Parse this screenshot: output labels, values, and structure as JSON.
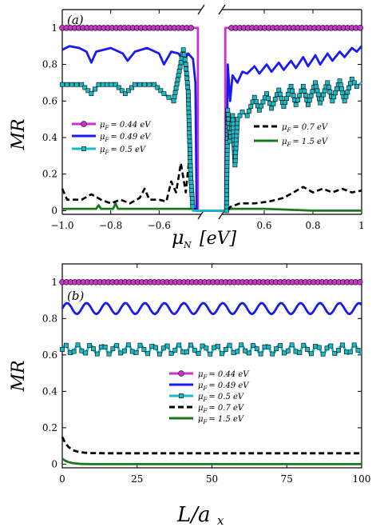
{
  "chart_data": [
    {
      "type": "line",
      "panel_label": "(a)",
      "xlabel": "μN [eV]",
      "ylabel": "MR",
      "ylim": [
        -0.02,
        1.1
      ],
      "x_axis": "broken",
      "x_segments": [
        [
          -1.0,
          -0.4
        ],
        [
          0.4,
          1.0
        ]
      ],
      "xticks": [
        "−1.0",
        "−0.8",
        "−0.6",
        "0.6",
        "0.8",
        "1"
      ],
      "yticks": [
        "0",
        "0.2",
        "0.4",
        "0.6",
        "0.8",
        "1"
      ],
      "legend_left": [
        "0",
        "1",
        "2"
      ],
      "legend_right": [
        "3",
        "4"
      ],
      "series": [
        {
          "name": "μF = 0.44 eV",
          "color": "#cc33cc",
          "marker": "circle",
          "points": [
            [
              -1.0,
              1.0
            ],
            [
              -0.5,
              1.0
            ],
            [
              -0.44,
              1.0
            ],
            [
              -0.44,
              0.0
            ],
            [
              -0.4,
              0.0
            ],
            [
              0.4,
              0.0
            ],
            [
              0.44,
              0.0
            ],
            [
              0.44,
              1.0
            ],
            [
              0.7,
              1.0
            ],
            [
              1.0,
              1.0
            ]
          ]
        },
        {
          "name": "μF = 0.49 eV",
          "color": "#1a1aee",
          "marker": "none",
          "points": [
            [
              -1.0,
              0.88
            ],
            [
              -0.97,
              0.9
            ],
            [
              -0.93,
              0.89
            ],
            [
              -0.9,
              0.87
            ],
            [
              -0.88,
              0.81
            ],
            [
              -0.86,
              0.87
            ],
            [
              -0.8,
              0.89
            ],
            [
              -0.75,
              0.86
            ],
            [
              -0.73,
              0.82
            ],
            [
              -0.7,
              0.87
            ],
            [
              -0.65,
              0.89
            ],
            [
              -0.6,
              0.86
            ],
            [
              -0.58,
              0.8
            ],
            [
              -0.55,
              0.87
            ],
            [
              -0.52,
              0.86
            ],
            [
              -0.5,
              0.82
            ],
            [
              -0.48,
              0.86
            ],
            [
              -0.46,
              0.83
            ],
            [
              -0.45,
              0.7
            ],
            [
              -0.445,
              0.0
            ],
            [
              -0.4,
              0.0
            ],
            [
              0.4,
              0.0
            ],
            [
              0.445,
              0.0
            ],
            [
              0.45,
              0.8
            ],
            [
              0.46,
              0.6
            ],
            [
              0.47,
              0.74
            ],
            [
              0.49,
              0.7
            ],
            [
              0.51,
              0.76
            ],
            [
              0.53,
              0.75
            ],
            [
              0.56,
              0.79
            ],
            [
              0.58,
              0.75
            ],
            [
              0.61,
              0.8
            ],
            [
              0.63,
              0.76
            ],
            [
              0.66,
              0.81
            ],
            [
              0.68,
              0.77
            ],
            [
              0.71,
              0.82
            ],
            [
              0.73,
              0.78
            ],
            [
              0.76,
              0.84
            ],
            [
              0.78,
              0.79
            ],
            [
              0.81,
              0.85
            ],
            [
              0.83,
              0.8
            ],
            [
              0.86,
              0.86
            ],
            [
              0.88,
              0.82
            ],
            [
              0.91,
              0.87
            ],
            [
              0.93,
              0.84
            ],
            [
              0.96,
              0.89
            ],
            [
              0.98,
              0.87
            ],
            [
              1.0,
              0.9
            ]
          ]
        },
        {
          "name": "μF = 0.5 eV",
          "color": "#18bcc8",
          "marker": "square",
          "points": [
            [
              -1.0,
              0.69
            ],
            [
              -0.92,
              0.69
            ],
            [
              -0.88,
              0.64
            ],
            [
              -0.85,
              0.69
            ],
            [
              -0.78,
              0.69
            ],
            [
              -0.74,
              0.64
            ],
            [
              -0.7,
              0.69
            ],
            [
              -0.62,
              0.69
            ],
            [
              -0.58,
              0.64
            ],
            [
              -0.56,
              0.62
            ],
            [
              -0.54,
              0.6
            ],
            [
              -0.52,
              0.74
            ],
            [
              -0.5,
              0.88
            ],
            [
              -0.49,
              0.8
            ],
            [
              -0.48,
              0.65
            ],
            [
              -0.47,
              0.2
            ],
            [
              -0.46,
              0.0
            ],
            [
              -0.4,
              0.0
            ],
            [
              0.4,
              0.0
            ],
            [
              0.445,
              0.0
            ],
            [
              0.45,
              0.55
            ],
            [
              0.46,
              0.38
            ],
            [
              0.47,
              0.52
            ],
            [
              0.48,
              0.25
            ],
            [
              0.49,
              0.5
            ],
            [
              0.51,
              0.54
            ],
            [
              0.53,
              0.52
            ],
            [
              0.56,
              0.62
            ],
            [
              0.58,
              0.55
            ],
            [
              0.61,
              0.64
            ],
            [
              0.63,
              0.56
            ],
            [
              0.66,
              0.66
            ],
            [
              0.68,
              0.57
            ],
            [
              0.71,
              0.68
            ],
            [
              0.73,
              0.58
            ],
            [
              0.76,
              0.68
            ],
            [
              0.78,
              0.58
            ],
            [
              0.81,
              0.7
            ],
            [
              0.83,
              0.59
            ],
            [
              0.86,
              0.7
            ],
            [
              0.88,
              0.6
            ],
            [
              0.91,
              0.71
            ],
            [
              0.93,
              0.6
            ],
            [
              0.96,
              0.72
            ],
            [
              0.98,
              0.68
            ],
            [
              1.0,
              0.7
            ]
          ]
        },
        {
          "name": "μF = 0.7 eV",
          "color": "#000000",
          "marker": "dashed",
          "points": [
            [
              -1.0,
              0.12
            ],
            [
              -0.98,
              0.06
            ],
            [
              -0.92,
              0.06
            ],
            [
              -0.88,
              0.09
            ],
            [
              -0.84,
              0.06
            ],
            [
              -0.8,
              0.04
            ],
            [
              -0.76,
              0.06
            ],
            [
              -0.72,
              0.04
            ],
            [
              -0.68,
              0.07
            ],
            [
              -0.66,
              0.12
            ],
            [
              -0.64,
              0.06
            ],
            [
              -0.6,
              0.06
            ],
            [
              -0.57,
              0.05
            ],
            [
              -0.55,
              0.16
            ],
            [
              -0.53,
              0.1
            ],
            [
              -0.51,
              0.26
            ],
            [
              -0.49,
              0.1
            ],
            [
              -0.47,
              0.36
            ],
            [
              -0.46,
              0.04
            ],
            [
              -0.45,
              0.0
            ],
            [
              -0.4,
              0.0
            ],
            [
              0.4,
              0.0
            ],
            [
              0.45,
              0.0
            ],
            [
              0.46,
              0.02
            ],
            [
              0.5,
              0.04
            ],
            [
              0.56,
              0.04
            ],
            [
              0.62,
              0.05
            ],
            [
              0.68,
              0.07
            ],
            [
              0.72,
              0.1
            ],
            [
              0.76,
              0.13
            ],
            [
              0.8,
              0.1
            ],
            [
              0.84,
              0.12
            ],
            [
              0.88,
              0.1
            ],
            [
              0.92,
              0.12
            ],
            [
              0.96,
              0.1
            ],
            [
              1.0,
              0.11
            ]
          ]
        },
        {
          "name": "μF = 1.5 eV",
          "color": "#1a7a1a",
          "marker": "none",
          "points": [
            [
              -1.0,
              0.01
            ],
            [
              -0.86,
              0.01
            ],
            [
              -0.85,
              0.03
            ],
            [
              -0.84,
              0.01
            ],
            [
              -0.79,
              0.01
            ],
            [
              -0.78,
              0.04
            ],
            [
              -0.77,
              0.01
            ],
            [
              -0.6,
              0.01
            ],
            [
              -0.55,
              0.01
            ],
            [
              -0.45,
              0.01
            ],
            [
              -0.44,
              0.0
            ],
            [
              0.4,
              0.0
            ],
            [
              0.44,
              0.0
            ],
            [
              0.45,
              0.01
            ],
            [
              0.6,
              0.01
            ],
            [
              0.8,
              0.0
            ],
            [
              1.0,
              0.0
            ]
          ]
        }
      ]
    },
    {
      "type": "line",
      "panel_label": "(b)",
      "xlabel": "L/ax",
      "ylabel": "MR",
      "xlim": [
        0,
        100
      ],
      "ylim": [
        -0.02,
        1.1
      ],
      "xticks": [
        "0",
        "25",
        "50",
        "75",
        "100"
      ],
      "yticks": [
        "0",
        "0.2",
        "0.4",
        "0.6",
        "0.8",
        "1"
      ],
      "legend": [
        "0",
        "1",
        "2",
        "3",
        "4"
      ],
      "series": [
        {
          "name": "μF = 0.44 eV",
          "color": "#cc33cc",
          "marker": "circle",
          "baseline": 1.0,
          "amplitude": 0.0,
          "period": 6.5
        },
        {
          "name": "μF = 0.49 eV",
          "color": "#1a1aee",
          "marker": "none",
          "baseline": 0.855,
          "amplitude": 0.03,
          "period": 6.5
        },
        {
          "name": "μF = 0.5 eV",
          "color": "#18bcc8",
          "marker": "square",
          "baseline": 0.63,
          "amplitude": 0.025,
          "period": 4.2
        },
        {
          "name": "μF = 0.7 eV",
          "color": "#000000",
          "marker": "dashed",
          "baseline": 0.06,
          "amplitude": 0.0,
          "period": 5.0,
          "start": 0.15
        },
        {
          "name": "μF = 1.5 eV",
          "color": "#1a7a1a",
          "marker": "none",
          "baseline": 0.0,
          "amplitude": 0.0,
          "period": 5.0,
          "start": 0.03
        }
      ]
    }
  ],
  "legend_text": {
    "s0_sub": "F",
    "s0_val": "= 0.44  eV",
    "s1_sub": "F",
    "s1_val": "= 0.49  eV",
    "s2_sub": "F",
    "s2_val": "= 0.5  eV",
    "s3_sub": "F",
    "s3_val": "= 0.7  eV",
    "s4_sub": "F",
    "s4_val": "= 1.5  eV",
    "mu": "μ"
  },
  "labels": {
    "a_panel": "(a)",
    "b_panel": "(b)",
    "a_ylabel": "MR",
    "b_ylabel": "MR",
    "a_xlabel_mu": "μ",
    "a_xlabel_sub": "N",
    "a_xlabel_unit": "[eV]",
    "b_xlabel_L": "L/a",
    "b_xlabel_sub": "x"
  }
}
